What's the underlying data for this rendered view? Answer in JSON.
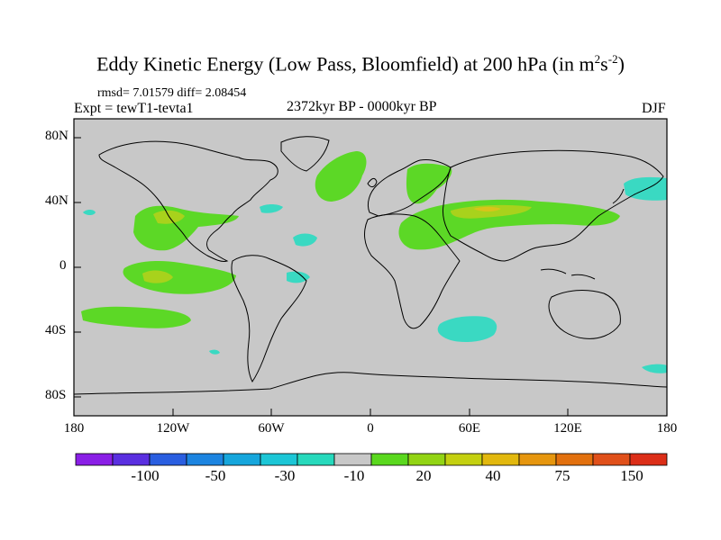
{
  "title": {
    "main": "Eddy Kinetic Energy (Low Pass, Bloomfield) at 200 hPa (in m",
    "sup1": "2",
    "mid": "s",
    "sup2": "-2",
    "end": ")"
  },
  "stats": "rmsd= 7.01579  diff= 2.08454",
  "experiment": "Expt = tewT1-tevta1",
  "period": "2372kyr BP - 0000kyr BP",
  "season": "DJF",
  "axes": {
    "y_ticks": [
      "80N",
      "40N",
      "0",
      "40S",
      "80S"
    ],
    "x_ticks": [
      "180",
      "120W",
      "60W",
      "0",
      "60E",
      "120E",
      "180"
    ]
  },
  "colorbar": {
    "colors": [
      "#8a1fe6",
      "#5a2fe0",
      "#2a5ee0",
      "#1c84e0",
      "#16a6dc",
      "#1cc6d6",
      "#27d9bc",
      "#c8c8c8",
      "#5ad81e",
      "#92d414",
      "#c4d010",
      "#e2b80e",
      "#e6960e",
      "#e2700e",
      "#e0501a",
      "#dc2e18"
    ],
    "labels": [
      "-100",
      "-50",
      "-30",
      "-10",
      "20",
      "40",
      "75",
      "150"
    ]
  },
  "legend_colors": {
    "land_ocean": "#c8c8c8",
    "teal": "#3ad9c2",
    "green": "#5cd826",
    "yellow_green": "#a8d21c",
    "yellow": "#d8c41a"
  }
}
